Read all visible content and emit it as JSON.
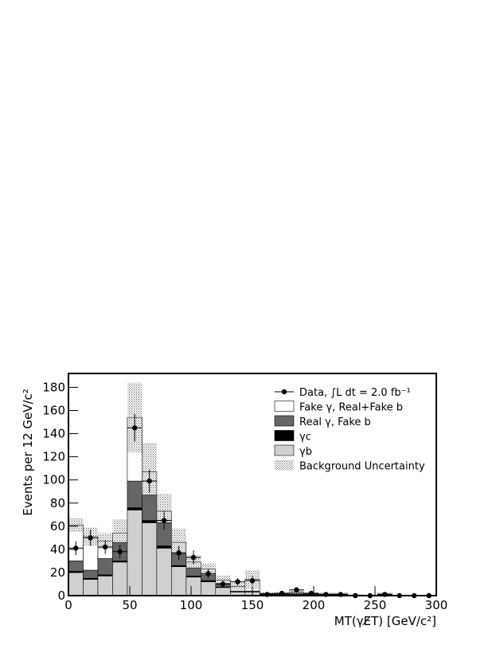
{
  "chart_data": {
    "type": "histogram",
    "x_label": "MT(γE̸T) [GeV/c²]",
    "y_label": "Events per 12 GeV/c²",
    "bins": [
      0,
      12,
      24,
      36,
      48,
      60,
      72,
      84,
      96,
      108,
      120,
      132,
      144,
      156,
      168,
      180,
      192,
      204,
      216,
      228,
      240,
      252,
      264,
      276,
      288,
      300
    ],
    "xlim": [
      0,
      300
    ],
    "xticks": [
      0,
      50,
      100,
      150,
      200,
      250,
      300
    ],
    "ylim": [
      0,
      192
    ],
    "yticks": [
      0,
      20,
      40,
      60,
      80,
      100,
      120,
      140,
      160,
      180
    ],
    "series": [
      {
        "name": "γb",
        "color": "#d0d0d0",
        "values": [
          20,
          14,
          17,
          29,
          74,
          63,
          41,
          25,
          16,
          12,
          7,
          3,
          3,
          1,
          1,
          1,
          1,
          0.5,
          0.5,
          0,
          0,
          0.5,
          0,
          0,
          0
        ]
      },
      {
        "name": "γc",
        "color": "#000000",
        "values": [
          1,
          1,
          1,
          1,
          2,
          2,
          2,
          1,
          1,
          1,
          0.5,
          0,
          0,
          0,
          0,
          0,
          0,
          0,
          0,
          0,
          0,
          0,
          0,
          0,
          0
        ]
      },
      {
        "name": "Real γ, Fake b",
        "color": "#666666",
        "values": [
          9,
          7,
          14,
          16,
          23,
          22,
          20,
          10,
          7,
          5,
          3,
          1,
          1,
          0.5,
          0.5,
          1,
          0.5,
          0.5,
          0.5,
          0.5,
          0,
          0.5,
          0,
          0,
          0
        ]
      },
      {
        "name": "Fake γ, Real+Fake b",
        "color": "#ffffff",
        "values": [
          31,
          29,
          15,
          8,
          55,
          20,
          10,
          10,
          5,
          5,
          3,
          4,
          10,
          0.5,
          0.5,
          1,
          0.5,
          0.5,
          0.5,
          0,
          0,
          0.5,
          0,
          0,
          0
        ]
      }
    ],
    "uncertainty": {
      "name": "Background Uncertainty",
      "values": [
        6,
        8,
        7,
        12,
        30,
        25,
        15,
        12,
        6,
        5,
        4,
        3,
        8,
        1,
        1,
        2,
        1,
        1,
        1,
        1,
        0.5,
        1,
        0,
        0,
        0
      ]
    },
    "data": {
      "name": "Data, ∫L dt = 2.0 fb⁻¹",
      "values": [
        41,
        50,
        42,
        38,
        145,
        99,
        65,
        37,
        33,
        19,
        10,
        12,
        13,
        1,
        2,
        5,
        2,
        1,
        1,
        0,
        0,
        1,
        0,
        0,
        0
      ],
      "errors": [
        6,
        7,
        6,
        6,
        12,
        10,
        8,
        6,
        6,
        4,
        3,
        3,
        4,
        1,
        1,
        2,
        1,
        1,
        1,
        1,
        1,
        1,
        1,
        1,
        1
      ]
    }
  }
}
